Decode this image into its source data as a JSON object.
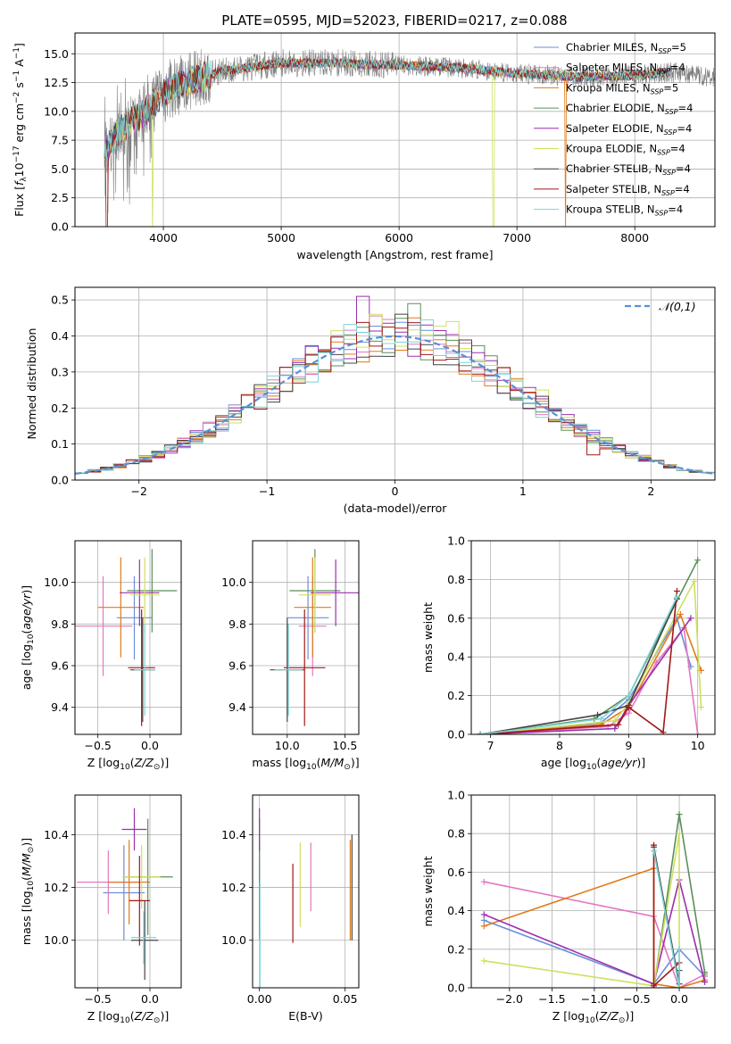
{
  "figure_title": "PLATE=0595, MJD=52023, FIBERID=0217, z=0.088",
  "colors": {
    "Chabrier MILES": "#6a8fd8",
    "Salpeter MILES": "#e377c2",
    "Kroupa MILES": "#e07a1a",
    "Chabrier ELODIE": "#5a8f5a",
    "Salpeter ELODIE": "#9b2fae",
    "Kroupa ELODIE": "#cfe060",
    "Chabrier STELIB": "#444444",
    "Salpeter STELIB": "#a01818",
    "Kroupa STELIB": "#7dd3d6",
    "data": "#808080"
  },
  "chart_data": [
    {
      "id": "spectrum",
      "type": "line",
      "title": "PLATE=0595, MJD=52023, FIBERID=0217, z=0.088",
      "xlabel": "wavelength [Angstrom, rest frame]",
      "ylabel": "Flux [f_λ 10^-17 erg cm^-2 s^-1 A^-1]",
      "xlim": [
        3250,
        8680
      ],
      "ylim": [
        0,
        16.8
      ],
      "xticks": [
        4000,
        5000,
        6000,
        7000,
        8000
      ],
      "yticks": [
        0.0,
        2.5,
        5.0,
        7.5,
        10.0,
        12.5,
        15.0
      ],
      "ytick_labels": [
        "0.0",
        "2.5",
        "5.0",
        "7.5",
        "10.0",
        "12.5",
        "15.0"
      ],
      "legend_position": "top-right",
      "legend": [
        {
          "name": "Chabrier MILES",
          "nssp": "5"
        },
        {
          "name": "Salpeter MILES",
          "nssp": "4"
        },
        {
          "name": "Kroupa MILES",
          "nssp": "5"
        },
        {
          "name": "Chabrier ELODIE",
          "nssp": "4"
        },
        {
          "name": "Salpeter ELODIE",
          "nssp": "4"
        },
        {
          "name": "Kroupa ELODIE",
          "nssp": "4"
        },
        {
          "name": "Chabrier STELIB",
          "nssp": "4"
        },
        {
          "name": "Salpeter STELIB",
          "nssp": "4"
        },
        {
          "name": "Kroupa STELIB",
          "nssp": "4"
        }
      ],
      "data_range": [
        3500,
        8680
      ],
      "continuum": [
        [
          3500,
          6.5
        ],
        [
          3600,
          8.0
        ],
        [
          3700,
          9.0
        ],
        [
          3850,
          10.0
        ],
        [
          4000,
          11.5
        ],
        [
          4200,
          12.6
        ],
        [
          4500,
          13.5
        ],
        [
          5000,
          14.2
        ],
        [
          5500,
          14.2
        ],
        [
          6000,
          14.0
        ],
        [
          6500,
          13.8
        ],
        [
          7000,
          13.3
        ],
        [
          7500,
          13.0
        ],
        [
          8000,
          13.1
        ],
        [
          8300,
          13.4
        ],
        [
          8680,
          13.0
        ]
      ],
      "model_range": [
        3500,
        8300
      ],
      "drops": [
        {
          "model": "Kroupa ELODIE",
          "x": [
            3910,
            6800
          ]
        },
        {
          "model": "Kroupa MILES",
          "x": [
            7410
          ]
        },
        {
          "model": "Salpeter STELIB",
          "x": [
            3520
          ]
        }
      ]
    },
    {
      "id": "residual-hist",
      "type": "histogram",
      "xlabel": "(data-model)/error",
      "ylabel": "Normed distribution",
      "xlim": [
        -2.5,
        2.5
      ],
      "ylim": [
        0,
        0.535
      ],
      "xticks": [
        -2,
        -1,
        0,
        1,
        2
      ],
      "xtick_labels": [
        "−2",
        "−1",
        "0",
        "1",
        "2"
      ],
      "yticks": [
        0.0,
        0.1,
        0.2,
        0.3,
        0.4,
        0.5
      ],
      "ytick_labels": [
        "0.0",
        "0.1",
        "0.2",
        "0.3",
        "0.4",
        "0.5"
      ],
      "bin_width": 0.1,
      "reference_curve": {
        "label": "𝒩(0,1)",
        "mean": 0,
        "sigma": 1
      },
      "legend_position": "top-right",
      "highlights": [
        {
          "model": "Salpeter ELODIE",
          "x": -0.25,
          "y": 0.51
        },
        {
          "model": "Kroupa ELODIE",
          "x": -0.15,
          "y": 0.46
        },
        {
          "model": "Chabrier ELODIE",
          "x": 0.15,
          "y": 0.49
        },
        {
          "model": "Kroupa ELODIE",
          "x": 0.45,
          "y": 0.44
        },
        {
          "model": "Kroupa ELODIE",
          "x": 1.15,
          "y": 0.25
        },
        {
          "model": "Salpeter STELIB",
          "x": 1.55,
          "y": 0.07
        }
      ]
    },
    {
      "id": "age-vs-z",
      "type": "errorbar",
      "xlabel": "Z [log10(Z/Z⊙)]",
      "ylabel": "age [log10(age/yr)]",
      "xlim": [
        -0.72,
        0.3
      ],
      "ylim": [
        9.27,
        10.2
      ],
      "xticks": [
        -0.5,
        0.0
      ],
      "xtick_labels": [
        "−0.5",
        "0.0"
      ],
      "yticks": [
        9.4,
        9.6,
        9.8,
        10.0
      ],
      "ytick_labels": [
        "9.4",
        "9.6",
        "9.8",
        "10.0"
      ],
      "points": [
        {
          "model": "Chabrier MILES",
          "x": -0.15,
          "xerr": 0.17,
          "y": 9.83,
          "yerr": 0.2
        },
        {
          "model": "Salpeter MILES",
          "x": -0.45,
          "xerr": 0.28,
          "y": 9.79,
          "yerr": 0.24
        },
        {
          "model": "Kroupa MILES",
          "x": -0.28,
          "xerr": 0.22,
          "y": 9.88,
          "yerr": 0.24
        },
        {
          "model": "Chabrier ELODIE",
          "x": 0.02,
          "xerr": 0.24,
          "y": 9.96,
          "yerr": 0.2
        },
        {
          "model": "Salpeter ELODIE",
          "x": -0.1,
          "xerr": 0.19,
          "y": 9.95,
          "yerr": 0.16
        },
        {
          "model": "Kroupa ELODIE",
          "x": -0.05,
          "xerr": 0.14,
          "y": 9.94,
          "yerr": 0.18
        },
        {
          "model": "Chabrier STELIB",
          "x": -0.07,
          "xerr": 0.12,
          "y": 9.58,
          "yerr": 0.25
        },
        {
          "model": "Salpeter STELIB",
          "x": -0.08,
          "xerr": 0.13,
          "y": 9.59,
          "yerr": 0.28
        },
        {
          "model": "Kroupa STELIB",
          "x": -0.05,
          "xerr": 0.1,
          "y": 9.58,
          "yerr": 0.22
        }
      ]
    },
    {
      "id": "age-vs-mass",
      "type": "errorbar",
      "xlabel": "mass [log10(M/M⊙)]",
      "ylabel": "",
      "xlim": [
        9.7,
        10.62
      ],
      "ylim": [
        9.27,
        10.2
      ],
      "xticks": [
        10.0,
        10.5
      ],
      "xtick_labels": [
        "10.0",
        "10.5"
      ],
      "yticks": [
        9.4,
        9.6,
        9.8,
        10.0
      ],
      "ytick_labels": [
        "9.4",
        "9.6",
        "9.8",
        "10.0"
      ],
      "points": [
        {
          "model": "Chabrier MILES",
          "x": 10.18,
          "xerr": 0.18,
          "y": 9.83,
          "yerr": 0.2
        },
        {
          "model": "Salpeter MILES",
          "x": 10.22,
          "xerr": 0.12,
          "y": 9.79,
          "yerr": 0.24
        },
        {
          "model": "Kroupa MILES",
          "x": 10.22,
          "xerr": 0.16,
          "y": 9.88,
          "yerr": 0.24
        },
        {
          "model": "Chabrier ELODIE",
          "x": 10.24,
          "xerr": 0.22,
          "y": 9.96,
          "yerr": 0.2
        },
        {
          "model": "Salpeter ELODIE",
          "x": 10.42,
          "xerr": 0.22,
          "y": 9.95,
          "yerr": 0.16
        },
        {
          "model": "Kroupa ELODIE",
          "x": 10.24,
          "xerr": 0.14,
          "y": 9.94,
          "yerr": 0.18
        },
        {
          "model": "Chabrier STELIB",
          "x": 10.0,
          "xerr": 0.15,
          "y": 9.58,
          "yerr": 0.25
        },
        {
          "model": "Salpeter STELIB",
          "x": 10.15,
          "xerr": 0.18,
          "y": 9.59,
          "yerr": 0.28
        },
        {
          "model": "Kroupa STELIB",
          "x": 10.01,
          "xerr": 0.12,
          "y": 9.58,
          "yerr": 0.22
        }
      ]
    },
    {
      "id": "weight-vs-age",
      "type": "line",
      "xlabel": "age [log10(age/yr)]",
      "ylabel": "mass weight",
      "xlim": [
        6.72,
        10.25
      ],
      "ylim": [
        0,
        1.0
      ],
      "xticks": [
        7,
        8,
        9,
        10
      ],
      "xtick_labels": [
        "7",
        "8",
        "9",
        "10"
      ],
      "yticks": [
        0.0,
        0.2,
        0.4,
        0.6,
        0.8,
        1.0
      ],
      "ytick_labels": [
        "0.0",
        "0.2",
        "0.4",
        "0.6",
        "0.8",
        "1.0"
      ],
      "grid": true,
      "series": [
        {
          "model": "Chabrier MILES",
          "x": [
            6.85,
            8.6,
            9.0,
            9.7,
            9.9
          ],
          "y": [
            0.0,
            0.06,
            0.18,
            0.6,
            0.35
          ]
        },
        {
          "model": "Salpeter MILES",
          "x": [
            6.85,
            8.7,
            9.0,
            9.4,
            9.8,
            10.0
          ],
          "y": [
            0.0,
            0.04,
            0.11,
            0.37,
            0.55,
            0.0
          ]
        },
        {
          "model": "Kroupa MILES",
          "x": [
            6.85,
            8.6,
            9.0,
            9.75,
            10.05
          ],
          "y": [
            0.0,
            0.05,
            0.14,
            0.62,
            0.33
          ]
        },
        {
          "model": "Chabrier ELODIE",
          "x": [
            6.85,
            8.5,
            9.0,
            10.0
          ],
          "y": [
            0.0,
            0.08,
            0.2,
            0.9
          ]
        },
        {
          "model": "Salpeter ELODIE",
          "x": [
            6.85,
            8.8,
            9.0,
            9.9
          ],
          "y": [
            0.0,
            0.03,
            0.15,
            0.6
          ]
        },
        {
          "model": "Kroupa ELODIE",
          "x": [
            6.85,
            8.8,
            9.0,
            9.95,
            10.05
          ],
          "y": [
            0.0,
            0.07,
            0.16,
            0.79,
            0.14
          ]
        },
        {
          "model": "Chabrier STELIB",
          "x": [
            6.85,
            8.55,
            9.0,
            9.7
          ],
          "y": [
            0.0,
            0.1,
            0.15,
            0.7
          ]
        },
        {
          "model": "Salpeter STELIB",
          "x": [
            6.85,
            8.85,
            9.0,
            9.5,
            9.7
          ],
          "y": [
            0.0,
            0.05,
            0.14,
            0.01,
            0.74
          ]
        },
        {
          "model": "Kroupa STELIB",
          "x": [
            6.85,
            8.6,
            9.0,
            9.7
          ],
          "y": [
            0.0,
            0.08,
            0.2,
            0.71
          ]
        }
      ]
    },
    {
      "id": "mass-vs-z",
      "type": "errorbar",
      "xlabel": "Z [log10(Z/Z⊙)]",
      "ylabel": "mass [log10(M/M⊙)]",
      "xlim": [
        -0.72,
        0.3
      ],
      "ylim": [
        9.82,
        10.55
      ],
      "xticks": [
        -0.5,
        0.0
      ],
      "xtick_labels": [
        "−0.5",
        "0.0"
      ],
      "yticks": [
        10.0,
        10.2,
        10.4
      ],
      "ytick_labels": [
        "10.0",
        "10.2",
        "10.4"
      ],
      "points": [
        {
          "model": "Chabrier MILES",
          "x": -0.25,
          "xerr": 0.2,
          "y": 10.18,
          "yerr": 0.18
        },
        {
          "model": "Salpeter MILES",
          "x": -0.4,
          "xerr": 0.3,
          "y": 10.22,
          "yerr": 0.12
        },
        {
          "model": "Kroupa MILES",
          "x": -0.2,
          "xerr": 0.2,
          "y": 10.22,
          "yerr": 0.16
        },
        {
          "model": "Chabrier ELODIE",
          "x": -0.02,
          "xerr": 0.24,
          "y": 10.24,
          "yerr": 0.22
        },
        {
          "model": "Salpeter ELODIE",
          "x": -0.15,
          "xerr": 0.12,
          "y": 10.42,
          "yerr": 0.08
        },
        {
          "model": "Kroupa ELODIE",
          "x": -0.08,
          "xerr": 0.18,
          "y": 10.24,
          "yerr": 0.12
        },
        {
          "model": "Chabrier STELIB",
          "x": -0.05,
          "xerr": 0.13,
          "y": 10.0,
          "yerr": 0.15
        },
        {
          "model": "Salpeter STELIB",
          "x": -0.1,
          "xerr": 0.1,
          "y": 10.15,
          "yerr": 0.17
        },
        {
          "model": "Kroupa STELIB",
          "x": -0.06,
          "xerr": 0.12,
          "y": 10.01,
          "yerr": 0.1
        }
      ]
    },
    {
      "id": "mass-vs-ebv",
      "type": "errorbar",
      "xlabel": "E(B-V)",
      "ylabel": "",
      "xlim": [
        -0.004,
        0.058
      ],
      "ylim": [
        9.82,
        10.55
      ],
      "xticks": [
        0.0,
        0.05
      ],
      "xtick_labels": [
        "0.00",
        "0.05"
      ],
      "yticks": [
        10.0,
        10.2,
        10.4
      ],
      "ytick_labels": [
        "10.0",
        "10.2",
        "10.4"
      ],
      "points": [
        {
          "model": "Chabrier MILES",
          "x": 0.0,
          "xerr": 0,
          "y": 10.18,
          "yerr": 0.18
        },
        {
          "model": "Salpeter MILES",
          "x": 0.03,
          "xerr": 0,
          "y": 10.24,
          "yerr": 0.13
        },
        {
          "model": "Kroupa MILES",
          "x": 0.053,
          "xerr": 0,
          "y": 10.19,
          "yerr": 0.19
        },
        {
          "model": "Chabrier ELODIE",
          "x": 0.0,
          "xerr": 0,
          "y": 10.24,
          "yerr": 0.22
        },
        {
          "model": "Salpeter ELODIE",
          "x": 0.0,
          "xerr": 0,
          "y": 10.42,
          "yerr": 0.08
        },
        {
          "model": "Kroupa ELODIE",
          "x": 0.0238,
          "xerr": 0,
          "y": 10.21,
          "yerr": 0.16
        },
        {
          "model": "Chabrier STELIB",
          "x": 0.054,
          "xerr": 0,
          "y": 10.2,
          "yerr": 0.2
        },
        {
          "model": "Salpeter STELIB",
          "x": 0.0195,
          "xerr": 0,
          "y": 10.14,
          "yerr": 0.15
        },
        {
          "model": "Kroupa STELIB",
          "x": 0.0003,
          "xerr": 0,
          "y": 10.02,
          "yerr": 0.2
        }
      ]
    },
    {
      "id": "weight-vs-z",
      "type": "line",
      "xlabel": "Z [log10(Z/Z⊙)]",
      "ylabel": "mass weight",
      "xlim": [
        -2.45,
        0.42
      ],
      "ylim": [
        0,
        1.0
      ],
      "xticks": [
        -2.0,
        -1.5,
        -1.0,
        -0.5,
        0.0
      ],
      "xtick_labels": [
        "−2.0",
        "−1.5",
        "−1.0",
        "−0.5",
        "0.0"
      ],
      "yticks": [
        0.0,
        0.2,
        0.4,
        0.6,
        0.8,
        1.0
      ],
      "ytick_labels": [
        "0.0",
        "0.2",
        "0.4",
        "0.6",
        "0.8",
        "1.0"
      ],
      "grid": true,
      "series": [
        {
          "model": "Chabrier MILES",
          "x": [
            -2.3,
            -0.3,
            0.0,
            0.3
          ],
          "y": [
            0.35,
            0.02,
            0.2,
            0.06
          ]
        },
        {
          "model": "Salpeter MILES",
          "x": [
            -2.3,
            -0.3,
            0.0,
            0.3
          ],
          "y": [
            0.55,
            0.37,
            0.0,
            0.07
          ]
        },
        {
          "model": "Kroupa MILES",
          "x": [
            -2.3,
            -0.3,
            -0.3,
            0.0,
            0.3
          ],
          "y": [
            0.32,
            0.62,
            0.02,
            0.0,
            0.04
          ]
        },
        {
          "model": "Chabrier ELODIE",
          "x": [
            -0.3,
            0.0,
            0.3
          ],
          "y": [
            0.0,
            0.9,
            0.08
          ]
        },
        {
          "model": "Salpeter ELODIE",
          "x": [
            -2.3,
            -0.3,
            0.0,
            0.3
          ],
          "y": [
            0.38,
            0.02,
            0.56,
            0.03
          ]
        },
        {
          "model": "Kroupa ELODIE",
          "x": [
            -2.3,
            -0.3,
            0.0,
            0.0
          ],
          "y": [
            0.14,
            0.01,
            0.8,
            0.02
          ]
        },
        {
          "model": "Chabrier STELIB",
          "x": [
            -0.3,
            0.0,
            0.0
          ],
          "y": [
            0.73,
            0.02,
            0.09
          ]
        },
        {
          "model": "Salpeter STELIB",
          "x": [
            -0.3,
            -0.3,
            0.0
          ],
          "y": [
            0.74,
            0.01,
            0.13
          ]
        },
        {
          "model": "Kroupa STELIB",
          "x": [
            -0.3,
            0.0,
            0.0
          ],
          "y": [
            0.71,
            0.0,
            0.2
          ]
        }
      ]
    }
  ]
}
